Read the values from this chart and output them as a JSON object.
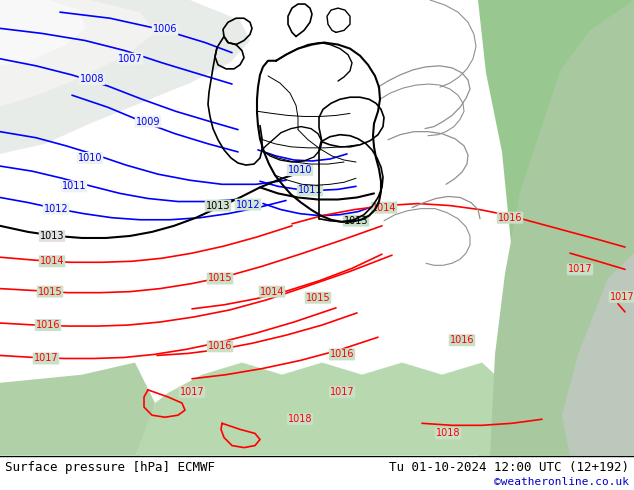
{
  "title_left": "Surface pressure [hPa] ECMWF",
  "title_right": "Tu 01-10-2024 12:00 UTC (12+192)",
  "watermark": "©weatheronline.co.uk",
  "watermark_color": "#0000cc",
  "bg_color": "#aad4a0",
  "bar_bg": "#c8e0c8",
  "blue_color": "#0000ff",
  "black_color": "#000000",
  "red_color": "#ff0000",
  "gray_color": "#909090",
  "label_fontsize": 7,
  "title_fontsize": 9,
  "figsize": [
    6.34,
    4.9
  ],
  "dpi": 100
}
